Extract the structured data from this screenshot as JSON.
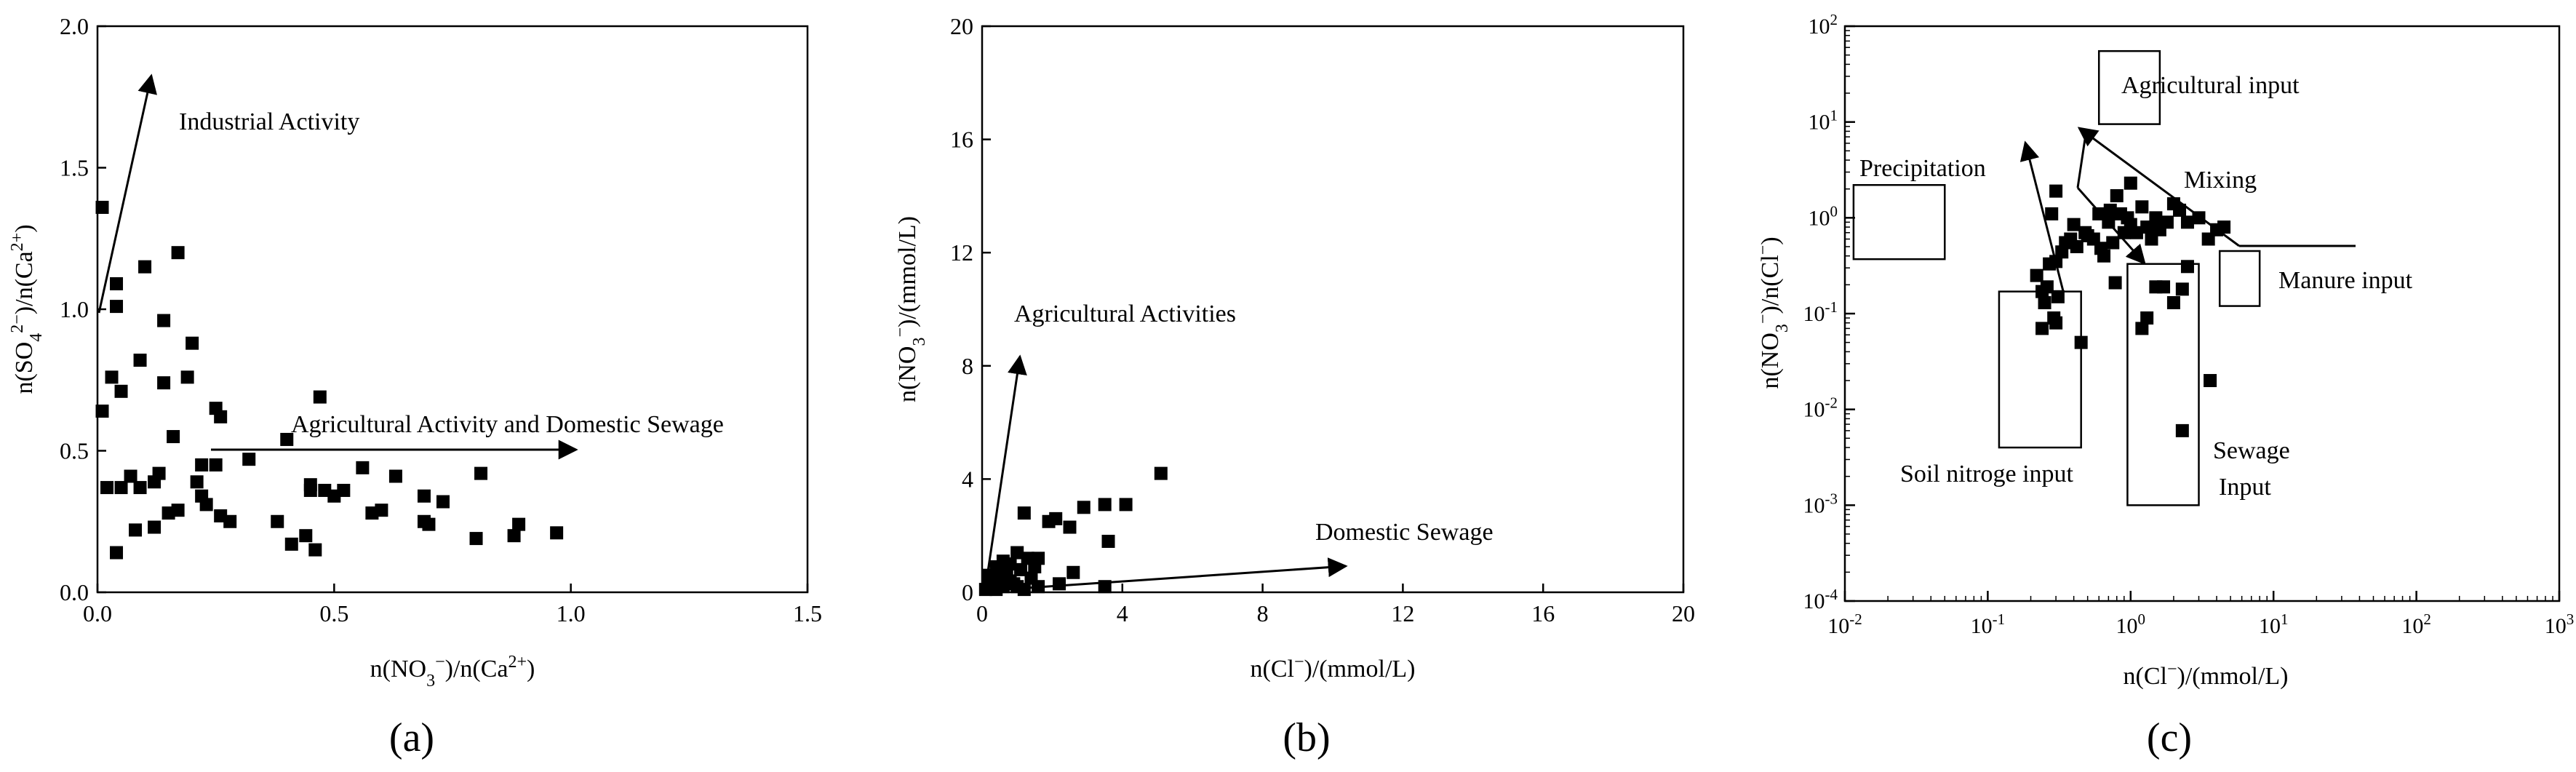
{
  "chart_data": [
    {
      "id": "a",
      "type": "scatter",
      "panel_label": "(a)",
      "xlabel": "n(NO3−)/n(Ca2+)",
      "ylabel": "n(SO42−)/n(Ca2+)",
      "xlim": [
        0,
        1.5
      ],
      "ylim": [
        0,
        2.0
      ],
      "x_ticks": [
        "0.0",
        "0.5",
        "1.0",
        "1.5"
      ],
      "y_ticks": [
        "0.0",
        "0.5",
        "1.0",
        "1.5",
        "2.0"
      ],
      "annotations": [
        "Industrial Activity",
        "Agricultural Activity and Domestic Sewage"
      ],
      "points": [
        [
          0.01,
          1.36
        ],
        [
          0.01,
          0.64
        ],
        [
          0.03,
          0.76
        ],
        [
          0.04,
          1.01
        ],
        [
          0.04,
          1.09
        ],
        [
          0.05,
          0.71
        ],
        [
          0.02,
          0.37
        ],
        [
          0.05,
          0.37
        ],
        [
          0.07,
          0.41
        ],
        [
          0.09,
          0.37
        ],
        [
          0.04,
          0.14
        ],
        [
          0.08,
          0.22
        ],
        [
          0.1,
          1.15
        ],
        [
          0.09,
          0.82
        ],
        [
          0.12,
          0.23
        ],
        [
          0.13,
          0.42
        ],
        [
          0.12,
          0.39
        ],
        [
          0.14,
          0.74
        ],
        [
          0.14,
          0.96
        ],
        [
          0.15,
          0.28
        ],
        [
          0.16,
          0.55
        ],
        [
          0.17,
          0.29
        ],
        [
          0.17,
          1.2
        ],
        [
          0.19,
          0.76
        ],
        [
          0.2,
          0.88
        ],
        [
          0.21,
          0.39
        ],
        [
          0.22,
          0.34
        ],
        [
          0.22,
          0.45
        ],
        [
          0.23,
          0.31
        ],
        [
          0.25,
          0.45
        ],
        [
          0.25,
          0.65
        ],
        [
          0.26,
          0.62
        ],
        [
          0.26,
          0.27
        ],
        [
          0.28,
          0.25
        ],
        [
          0.32,
          0.47
        ],
        [
          0.38,
          0.25
        ],
        [
          0.4,
          0.54
        ],
        [
          0.41,
          0.17
        ],
        [
          0.44,
          0.2
        ],
        [
          0.45,
          0.38
        ],
        [
          0.47,
          0.69
        ],
        [
          0.45,
          0.36
        ],
        [
          0.46,
          0.15
        ],
        [
          0.48,
          0.36
        ],
        [
          0.5,
          0.34
        ],
        [
          0.52,
          0.36
        ],
        [
          0.56,
          0.44
        ],
        [
          0.58,
          0.28
        ],
        [
          0.6,
          0.29
        ],
        [
          0.63,
          0.41
        ],
        [
          0.69,
          0.34
        ],
        [
          0.69,
          0.25
        ],
        [
          0.7,
          0.24
        ],
        [
          0.73,
          0.32
        ],
        [
          0.8,
          0.19
        ],
        [
          0.81,
          0.42
        ],
        [
          0.88,
          0.2
        ],
        [
          0.89,
          0.24
        ],
        [
          0.97,
          0.21
        ]
      ]
    },
    {
      "id": "b",
      "type": "scatter",
      "panel_label": "(b)",
      "xlabel": "n(Cl−)/(mmol/L)",
      "ylabel": "n(NO3−)/(mmol/L)",
      "xlim": [
        0,
        20
      ],
      "ylim": [
        0,
        20
      ],
      "x_ticks": [
        "0",
        "4",
        "8",
        "12",
        "16",
        "20"
      ],
      "y_ticks": [
        "0",
        "4",
        "8",
        "12",
        "16",
        "20"
      ],
      "annotations": [
        "Agricultural Activities",
        "Domestic Sewage"
      ],
      "points": [
        [
          0.1,
          0.1
        ],
        [
          0.2,
          0.3
        ],
        [
          0.3,
          0.2
        ],
        [
          0.3,
          0.5
        ],
        [
          0.4,
          0.1
        ],
        [
          0.5,
          0.4
        ],
        [
          0.5,
          0.8
        ],
        [
          0.6,
          0.2
        ],
        [
          0.7,
          0.6
        ],
        [
          0.8,
          1.0
        ],
        [
          0.9,
          0.3
        ],
        [
          1.0,
          1.4
        ],
        [
          1.1,
          0.8
        ],
        [
          1.2,
          0.1
        ],
        [
          1.3,
          1.2
        ],
        [
          1.4,
          0.5
        ],
        [
          1.5,
          0.9
        ],
        [
          1.6,
          0.2
        ],
        [
          1.6,
          1.2
        ],
        [
          0.2,
          0.6
        ],
        [
          0.4,
          0.9
        ],
        [
          0.6,
          1.1
        ],
        [
          0.3,
          0.2
        ],
        [
          1.0,
          0.2
        ],
        [
          0.8,
          0.4
        ],
        [
          1.2,
          2.8
        ],
        [
          1.9,
          2.5
        ],
        [
          2.1,
          2.6
        ],
        [
          2.2,
          0.3
        ],
        [
          2.5,
          2.3
        ],
        [
          2.6,
          0.7
        ],
        [
          2.9,
          3.0
        ],
        [
          3.5,
          3.1
        ],
        [
          3.6,
          1.8
        ],
        [
          4.1,
          3.1
        ],
        [
          5.1,
          4.2
        ],
        [
          3.5,
          0.2
        ]
      ]
    },
    {
      "id": "c",
      "type": "scatter",
      "panel_label": "(c)",
      "xlabel": "n(Cl−)/(mmol/L)",
      "ylabel": "n(NO3−)/n(Cl−)",
      "xscale": "log",
      "yscale": "log",
      "xlim": [
        0.01,
        1000
      ],
      "ylim": [
        0.0001,
        100
      ],
      "x_ticks": [
        "-2",
        "-1",
        "0",
        "1",
        "2",
        "3"
      ],
      "y_ticks": [
        "-4",
        "-3",
        "-2",
        "-1",
        "0",
        "1",
        "2"
      ],
      "tick_base": "10",
      "annotations": [
        "Agricultural input",
        "Precipitation",
        "Mixing",
        "Manure input",
        "Soil nitroge input",
        "Sewage",
        "Input"
      ],
      "regions": [
        {
          "name": "Agricultural input",
          "x": [
            0.6,
            1.6
          ],
          "y": [
            9.5,
            55
          ]
        },
        {
          "name": "Precipitation",
          "x": [
            0.0115,
            0.05
          ],
          "y": [
            0.37,
            2.2
          ]
        },
        {
          "name": "Manure input",
          "x": [
            4.2,
            8.0
          ],
          "y": [
            0.12,
            0.45
          ]
        },
        {
          "name": "Soil nitroge input",
          "x": [
            0.12,
            0.45
          ],
          "y": [
            0.004,
            0.17
          ]
        },
        {
          "name": "Sewage Input",
          "x": [
            0.95,
            3.0
          ],
          "y": [
            0.001,
            0.33
          ]
        }
      ],
      "points": [
        [
          0.22,
          0.25
        ],
        [
          0.24,
          0.17
        ],
        [
          0.25,
          0.13
        ],
        [
          0.26,
          0.19
        ],
        [
          0.27,
          0.33
        ],
        [
          0.29,
          0.09
        ],
        [
          0.3,
          0.08
        ],
        [
          0.31,
          0.15
        ],
        [
          0.24,
          0.07
        ],
        [
          0.28,
          1.1
        ],
        [
          0.3,
          1.9
        ],
        [
          0.3,
          0.35
        ],
        [
          0.33,
          0.44
        ],
        [
          0.35,
          0.55
        ],
        [
          0.38,
          0.6
        ],
        [
          0.4,
          0.85
        ],
        [
          0.42,
          0.5
        ],
        [
          0.45,
          0.05
        ],
        [
          0.48,
          0.7
        ],
        [
          0.5,
          0.65
        ],
        [
          0.55,
          0.6
        ],
        [
          0.6,
          1.1
        ],
        [
          0.62,
          0.48
        ],
        [
          0.65,
          0.4
        ],
        [
          0.7,
          0.9
        ],
        [
          0.72,
          1.2
        ],
        [
          0.75,
          0.55
        ],
        [
          0.78,
          0.21
        ],
        [
          0.8,
          1.7
        ],
        [
          0.85,
          1.1
        ],
        [
          0.9,
          0.7
        ],
        [
          0.95,
          1.0
        ],
        [
          1.0,
          0.85
        ],
        [
          1.1,
          0.7
        ],
        [
          1.2,
          1.3
        ],
        [
          1.3,
          0.8
        ],
        [
          1.4,
          0.6
        ],
        [
          1.5,
          1.0
        ],
        [
          1.6,
          0.75
        ],
        [
          1.8,
          0.9
        ],
        [
          2.0,
          1.4
        ],
        [
          2.2,
          1.2
        ],
        [
          2.5,
          0.9
        ],
        [
          3.0,
          1.0
        ],
        [
          3.5,
          0.6
        ],
        [
          4.0,
          0.75
        ],
        [
          4.5,
          0.8
        ],
        [
          1.0,
          2.3
        ],
        [
          1.2,
          0.07
        ],
        [
          1.3,
          0.09
        ],
        [
          1.5,
          0.19
        ],
        [
          1.7,
          0.19
        ],
        [
          2.0,
          0.13
        ],
        [
          2.3,
          0.18
        ],
        [
          2.5,
          0.31
        ],
        [
          2.3,
          0.006
        ],
        [
          3.6,
          0.02
        ]
      ]
    }
  ]
}
